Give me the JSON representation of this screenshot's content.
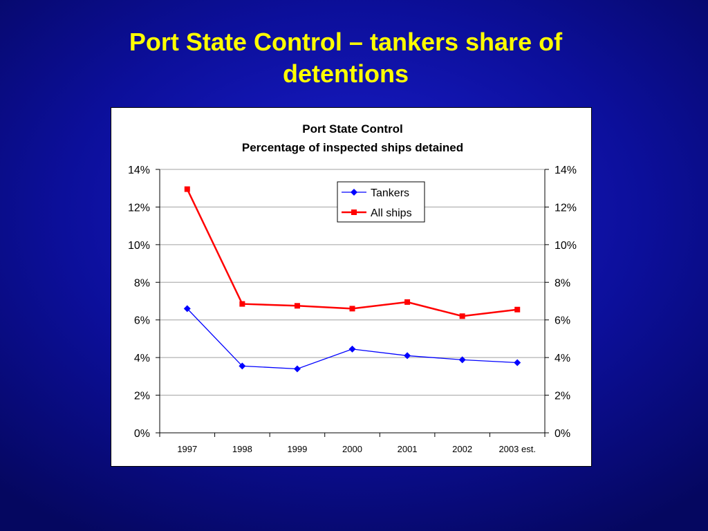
{
  "slide": {
    "title_line1": "Port State Control – tankers share of",
    "title_line2": "detentions"
  },
  "colors": {
    "background": "#0c0f9a",
    "title": "#ffff00",
    "tankers": "#0000ff",
    "all_ships": "#ff0000"
  },
  "chart_data": {
    "type": "line",
    "title": "Port State Control",
    "subtitle": "Percentage of inspected ships detained",
    "categories": [
      "1997",
      "1998",
      "1999",
      "2000",
      "2001",
      "2002",
      "2003 est."
    ],
    "series": [
      {
        "name": "Tankers",
        "values": [
          6.6,
          3.55,
          3.4,
          4.45,
          4.1,
          3.88,
          3.73
        ],
        "color": "#0000ff",
        "marker": "diamond"
      },
      {
        "name": "All ships",
        "values": [
          12.95,
          6.85,
          6.75,
          6.6,
          6.95,
          6.2,
          6.55
        ],
        "color": "#ff0000",
        "marker": "square"
      }
    ],
    "ylim": [
      0,
      14
    ],
    "yticks": [
      "0%",
      "2%",
      "4%",
      "6%",
      "8%",
      "10%",
      "12%",
      "14%"
    ],
    "secondary_axis": true,
    "grid": true,
    "legend_position": "top-center"
  }
}
